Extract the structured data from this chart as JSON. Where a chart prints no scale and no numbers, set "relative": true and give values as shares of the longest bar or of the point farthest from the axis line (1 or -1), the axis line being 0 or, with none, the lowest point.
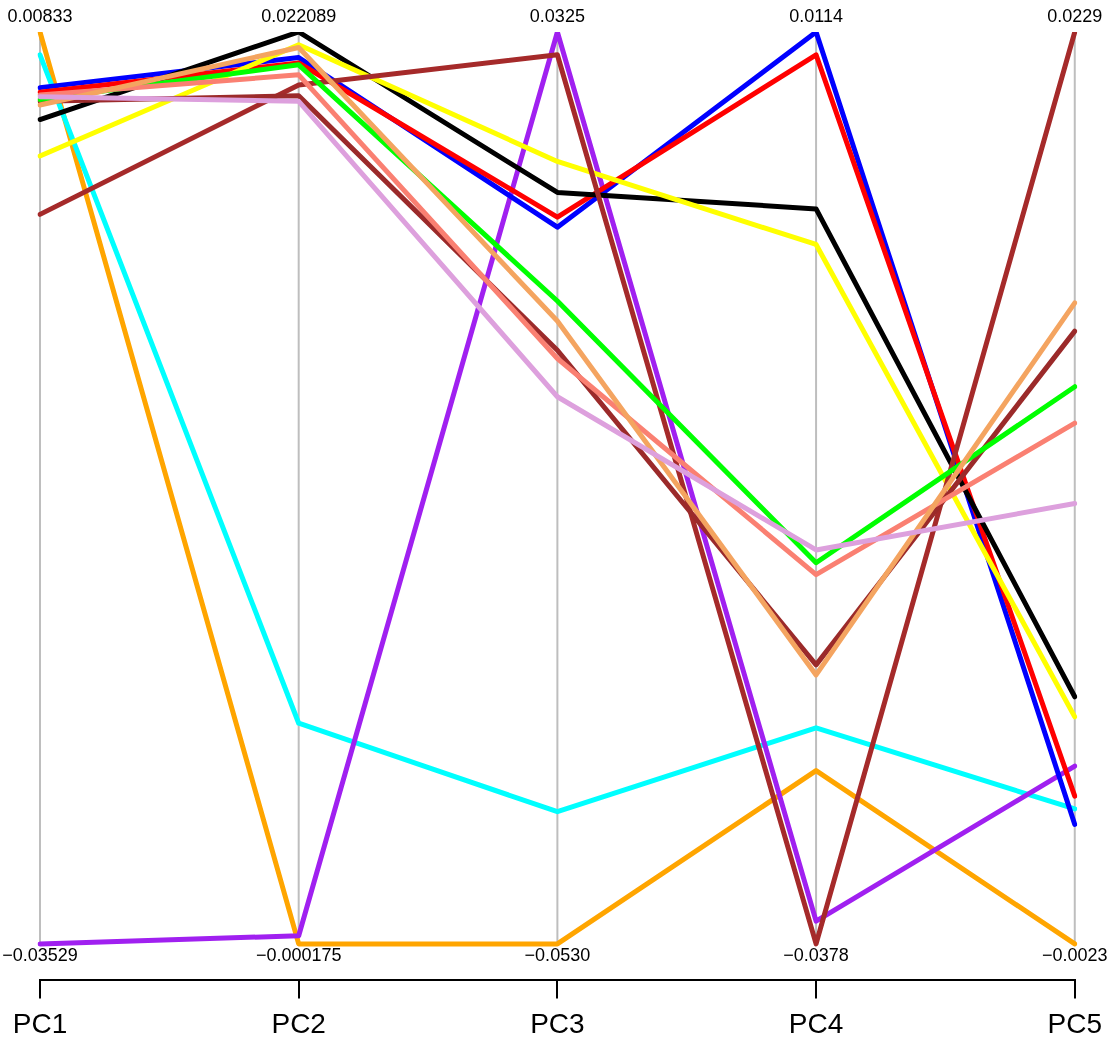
{
  "chart_data": {
    "type": "line",
    "relative": true,
    "categories": [
      "PC1",
      "PC2",
      "PC3",
      "PC4",
      "PC5"
    ],
    "grid": "x",
    "legend": false,
    "marker": "none",
    "line_style": "solid",
    "series": [
      {
        "color": "#ffa500",
        "values": [
          1,
          0,
          0,
          0.19,
          0
        ]
      },
      {
        "color": "#00ffff",
        "values": [
          0.975,
          0.242,
          0.145,
          0.237,
          0.148
        ]
      },
      {
        "color": "#a020f0",
        "values": [
          0,
          0.009,
          1,
          0.025,
          0.195
        ]
      },
      {
        "color": "#0000ff",
        "values": [
          0.939,
          0.972,
          0.786,
          1,
          0.131
        ]
      },
      {
        "color": "#ff0000",
        "values": [
          0.934,
          0.966,
          0.797,
          0.975,
          0.162
        ]
      },
      {
        "color": "#000000",
        "values": [
          0.904,
          1,
          0.824,
          0.806,
          0.271
        ]
      },
      {
        "color": "#ffff00",
        "values": [
          0.864,
          0.986,
          0.858,
          0.767,
          0.249
        ]
      },
      {
        "color": "#a52a2a",
        "values": [
          0.8,
          0.942,
          0.975,
          0,
          1
        ]
      },
      {
        "color": "#9b2a2a",
        "values": [
          0.924,
          0.93,
          0.651,
          0.306,
          0.672
        ]
      },
      {
        "color": "#00ff00",
        "values": [
          0.926,
          0.964,
          0.705,
          0.418,
          0.611
        ]
      },
      {
        "color": "#fa8072",
        "values": [
          0.931,
          0.953,
          0.642,
          0.405,
          0.571
        ]
      },
      {
        "color": "#f4a460",
        "values": [
          0.92,
          0.983,
          0.683,
          0.295,
          0.703
        ]
      },
      {
        "color": "#dda0dd",
        "values": [
          0.929,
          0.924,
          0.6,
          0.432,
          0.483
        ]
      }
    ],
    "annotations": [
      {
        "text": "0.00833",
        "x": "PC1",
        "y": 1
      },
      {
        "text": "0.022089",
        "x": "PC2",
        "y": 1
      },
      {
        "text": "0.0325",
        "x": "PC3",
        "y": 1
      },
      {
        "text": "0.0114",
        "x": "PC4",
        "y": 1
      },
      {
        "text": "0.0229",
        "x": "PC5",
        "y": 1
      },
      {
        "text": "−0.03529",
        "x": "PC1",
        "y": 0
      },
      {
        "text": "−0.000175",
        "x": "PC2",
        "y": 0
      },
      {
        "text": "−0.0530",
        "x": "PC3",
        "y": 0
      },
      {
        "text": "−0.0378",
        "x": "PC4",
        "y": 0
      },
      {
        "text": "−0.0023",
        "x": "PC5",
        "y": 0
      }
    ]
  }
}
